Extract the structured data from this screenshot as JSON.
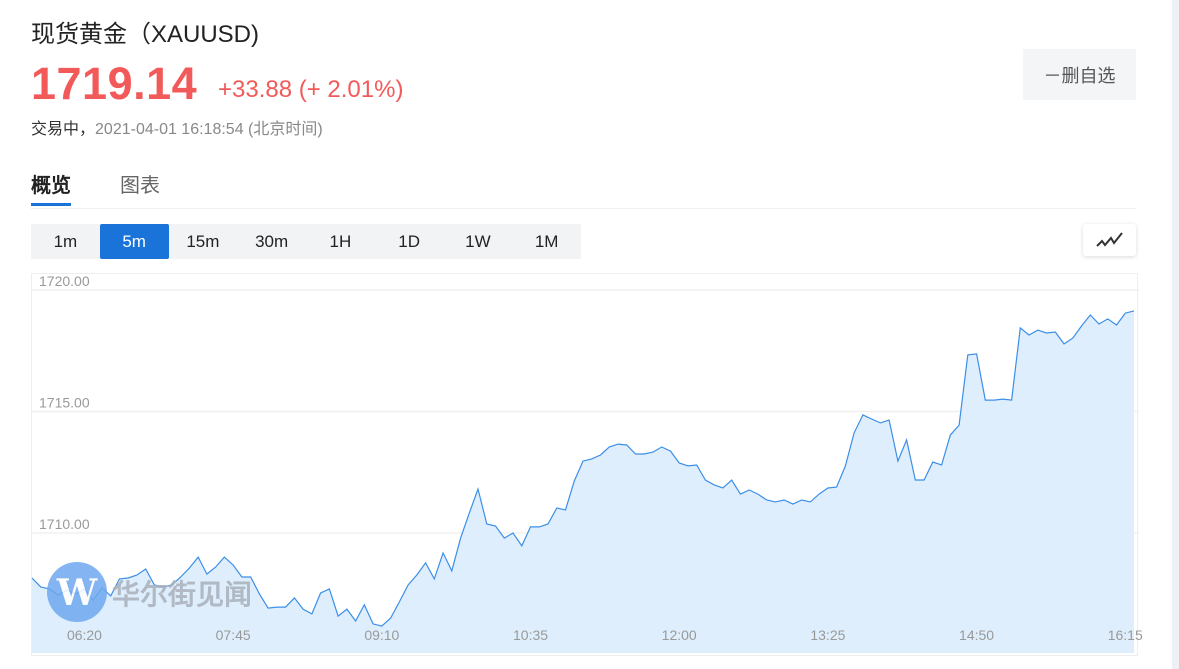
{
  "header": {
    "title": "现货黄金（XAUUSD)",
    "price": "1719.14",
    "change": "+33.88 (+ 2.01%)",
    "status": "交易中，",
    "timestamp": "2021-04-01 16:18:54",
    "timezone": "(北京时间)",
    "watchlist_button": "－删自选",
    "price_color": "#f25a5a"
  },
  "tabs": [
    {
      "label": "概览",
      "active": true
    },
    {
      "label": "图表",
      "active": false
    }
  ],
  "timeframes": [
    {
      "label": "1m",
      "active": false
    },
    {
      "label": "5m",
      "active": true
    },
    {
      "label": "15m",
      "active": false
    },
    {
      "label": "30m",
      "active": false
    },
    {
      "label": "1H",
      "active": false
    },
    {
      "label": "1D",
      "active": false
    },
    {
      "label": "1W",
      "active": false
    },
    {
      "label": "1M",
      "active": false
    }
  ],
  "chart_type_icon": "line-chart-icon",
  "watermark": {
    "logo_letter": "W",
    "text": "华尔街见闻"
  },
  "accent_color": "#1a73d9",
  "chart_data": {
    "type": "area",
    "line_color": "#3b8fe8",
    "fill_color": "#deeefd",
    "grid": true,
    "ylim": [
      1705.5,
      1720.6
    ],
    "y_ticks": [
      1720.0,
      1715.0,
      1710.0
    ],
    "y_tick_labels": [
      "1720.00",
      "1715.00",
      "1710.00"
    ],
    "x_ticks": [
      "06:20",
      "07:45",
      "09:10",
      "10:35",
      "12:00",
      "13:25",
      "14:50",
      "16:15"
    ],
    "x": [
      "05:50",
      "05:55",
      "06:00",
      "06:05",
      "06:10",
      "06:15",
      "06:20",
      "06:25",
      "06:30",
      "06:35",
      "06:40",
      "06:45",
      "06:50",
      "06:55",
      "07:00",
      "07:05",
      "07:10",
      "07:15",
      "07:20",
      "07:25",
      "07:30",
      "07:35",
      "07:40",
      "07:45",
      "07:50",
      "07:55",
      "08:00",
      "08:05",
      "08:10",
      "08:15",
      "08:20",
      "08:25",
      "08:30",
      "08:35",
      "08:40",
      "08:45",
      "08:50",
      "08:55",
      "09:00",
      "09:05",
      "09:10",
      "09:15",
      "09:20",
      "09:25",
      "09:30",
      "09:35",
      "09:40",
      "09:45",
      "09:50",
      "09:55",
      "10:00",
      "10:05",
      "10:10",
      "10:15",
      "10:20",
      "10:25",
      "10:30",
      "10:35",
      "10:40",
      "10:45",
      "10:50",
      "10:55",
      "11:00",
      "11:05",
      "11:10",
      "11:15",
      "11:20",
      "11:25",
      "11:30",
      "11:35",
      "11:40",
      "11:45",
      "11:50",
      "11:55",
      "12:00",
      "12:05",
      "12:10",
      "12:15",
      "12:20",
      "12:25",
      "12:30",
      "12:35",
      "12:40",
      "12:45",
      "12:50",
      "12:55",
      "13:00",
      "13:05",
      "13:10",
      "13:15",
      "13:20",
      "13:25",
      "13:30",
      "13:35",
      "13:40",
      "13:45",
      "13:50",
      "13:55",
      "14:00",
      "14:05",
      "14:10",
      "14:15",
      "14:20",
      "14:25",
      "14:30",
      "14:35",
      "14:40",
      "14:45",
      "14:50",
      "14:55",
      "15:00",
      "15:05",
      "15:10",
      "15:15",
      "15:20",
      "15:25",
      "15:30",
      "15:35",
      "15:40",
      "15:45",
      "15:50",
      "15:55",
      "16:00",
      "16:05",
      "16:10",
      "16:15",
      "16:20"
    ],
    "values": [
      1708.15,
      1707.78,
      1707.7,
      1707.45,
      1707.65,
      1707.49,
      1707.7,
      1707.24,
      1707.74,
      1707.41,
      1708.11,
      1708.15,
      1708.27,
      1708.52,
      1707.86,
      1707.78,
      1707.86,
      1708.19,
      1708.56,
      1709.01,
      1708.31,
      1708.6,
      1709.01,
      1708.68,
      1708.19,
      1708.19,
      1707.49,
      1706.91,
      1706.95,
      1706.95,
      1707.33,
      1706.87,
      1706.67,
      1707.53,
      1707.7,
      1706.58,
      1706.87,
      1706.38,
      1707.04,
      1706.26,
      1706.17,
      1706.5,
      1707.16,
      1707.86,
      1708.27,
      1708.77,
      1708.11,
      1709.18,
      1708.44,
      1709.79,
      1710.82,
      1711.81,
      1710.37,
      1710.29,
      1709.79,
      1710.0,
      1709.47,
      1710.25,
      1710.25,
      1710.37,
      1711.03,
      1710.95,
      1712.14,
      1712.96,
      1713.05,
      1713.21,
      1713.54,
      1713.66,
      1713.62,
      1713.25,
      1713.25,
      1713.33,
      1713.54,
      1713.37,
      1712.88,
      1712.76,
      1712.8,
      1712.18,
      1711.98,
      1711.85,
      1712.18,
      1711.6,
      1711.77,
      1711.6,
      1711.36,
      1711.28,
      1711.36,
      1711.19,
      1711.36,
      1711.28,
      1711.6,
      1711.85,
      1711.89,
      1712.76,
      1714.12,
      1714.86,
      1714.69,
      1714.53,
      1714.65,
      1712.96,
      1713.83,
      1712.18,
      1712.18,
      1712.92,
      1712.8,
      1714.03,
      1714.44,
      1717.33,
      1717.37,
      1715.47,
      1715.47,
      1715.51,
      1715.47,
      1718.44,
      1718.15,
      1718.35,
      1718.23,
      1718.27,
      1717.78,
      1718.02,
      1718.52,
      1718.97,
      1718.6,
      1718.81,
      1718.56,
      1719.05,
      1719.14
    ]
  }
}
